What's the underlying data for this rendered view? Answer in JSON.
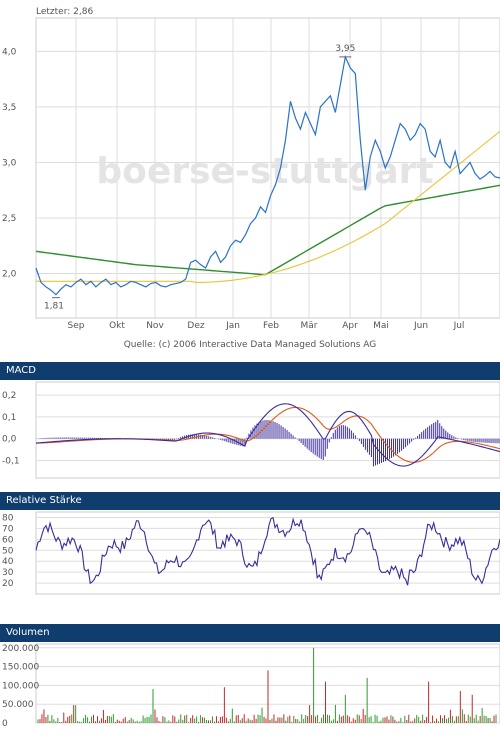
{
  "price_panel": {
    "last_label": "Letzter: 2,86",
    "source": "Quelle: (c) 2006 Interactive Data Managed Solutions AG",
    "watermark": "boerse-stuttgart",
    "max_label": "3,95",
    "min_label": "1,81"
  },
  "panels": {
    "macd_title": "MACD",
    "rsi_title": "Relative Stärke",
    "volume_title": "Volumen"
  },
  "colors": {
    "header_bg": "#0f3d6e",
    "price_line": "#2a72c8",
    "ma_long": "#2f8f2f",
    "ma_short": "#e8c43a",
    "macd_line": "#3a2d9a",
    "signal_line": "#e05a1a",
    "hist": "#3a2d9a",
    "rsi_line": "#3a2d9a",
    "vol_up": "#2f9a2f",
    "vol_down": "#c02a2a",
    "grid": "#dddddd"
  },
  "chart_data": [
    {
      "type": "line",
      "series": [
        {
          "x": [
            0,
            5,
            10,
            15,
            20,
            25,
            30,
            35,
            40,
            45,
            50,
            55,
            60,
            65,
            70,
            75,
            80,
            85,
            90,
            95,
            100,
            105,
            110,
            115,
            120,
            125,
            130,
            135,
            140,
            145,
            150,
            155,
            160,
            165,
            170,
            175,
            180,
            185,
            190,
            195,
            200,
            205,
            210,
            215,
            220,
            225,
            230,
            235,
            240,
            245,
            250,
            255,
            260,
            265,
            270,
            275,
            280,
            285,
            290,
            295,
            300,
            305,
            310,
            315,
            320,
            325,
            330,
            335,
            340,
            345,
            350,
            355,
            360,
            365,
            370,
            375,
            380,
            385,
            390,
            395,
            400,
            405,
            410,
            415,
            420,
            425,
            430,
            435,
            440,
            445,
            450,
            455,
            460,
            465
          ],
          "values": [
            2.05,
            1.92,
            1.88,
            1.85,
            1.81,
            1.86,
            1.9,
            1.88,
            1.92,
            1.95,
            1.9,
            1.93,
            1.88,
            1.92,
            1.95,
            1.9,
            1.92,
            1.88,
            1.9,
            1.93,
            1.92,
            1.9,
            1.88,
            1.91,
            1.92,
            1.89,
            1.88,
            1.9,
            1.91,
            1.92,
            1.95,
            2.1,
            2.12,
            2.08,
            2.05,
            2.15,
            2.2,
            2.1,
            2.15,
            2.25,
            2.3,
            2.28,
            2.35,
            2.45,
            2.5,
            2.6,
            2.55,
            2.7,
            2.8,
            2.95,
            3.2,
            3.55,
            3.4,
            3.3,
            3.45,
            3.35,
            3.25,
            3.5,
            3.55,
            3.6,
            3.45,
            3.7,
            3.95,
            3.85,
            3.8,
            3.2,
            2.75,
            3.05,
            3.2,
            3.1,
            2.95,
            3.05,
            3.2,
            3.35,
            3.3,
            3.2,
            3.25,
            3.35,
            3.3,
            3.1,
            3.05,
            3.2,
            3.0,
            2.95,
            3.1,
            2.9,
            2.95,
            3.0,
            2.9,
            2.85,
            2.88,
            2.92,
            2.87,
            2.86
          ]
        }
      ],
      "ylim": [
        1.6,
        4.3
      ],
      "y_ticks": [
        "4,0",
        "3,5",
        "3,0",
        "2,5",
        "2,0"
      ],
      "x_ticks": [
        "Sep",
        "Okt",
        "Nov",
        "Dez",
        "Jan",
        "Feb",
        "Mär",
        "Apr",
        "Mai",
        "Jun",
        "Jul"
      ]
    },
    {
      "type": "line",
      "ylim": [
        -0.18,
        0.26
      ],
      "y_ticks": [
        "0,2",
        "0,1",
        "0,0",
        "-0,1"
      ]
    },
    {
      "type": "line",
      "ylim": [
        10,
        85
      ],
      "y_ticks": [
        "80",
        "70",
        "60",
        "50",
        "40",
        "30",
        "20"
      ]
    },
    {
      "type": "bar",
      "ylim": [
        0,
        210000
      ],
      "y_ticks": [
        "200.000",
        "150.000",
        "100.000",
        "50.000",
        "0"
      ]
    }
  ]
}
